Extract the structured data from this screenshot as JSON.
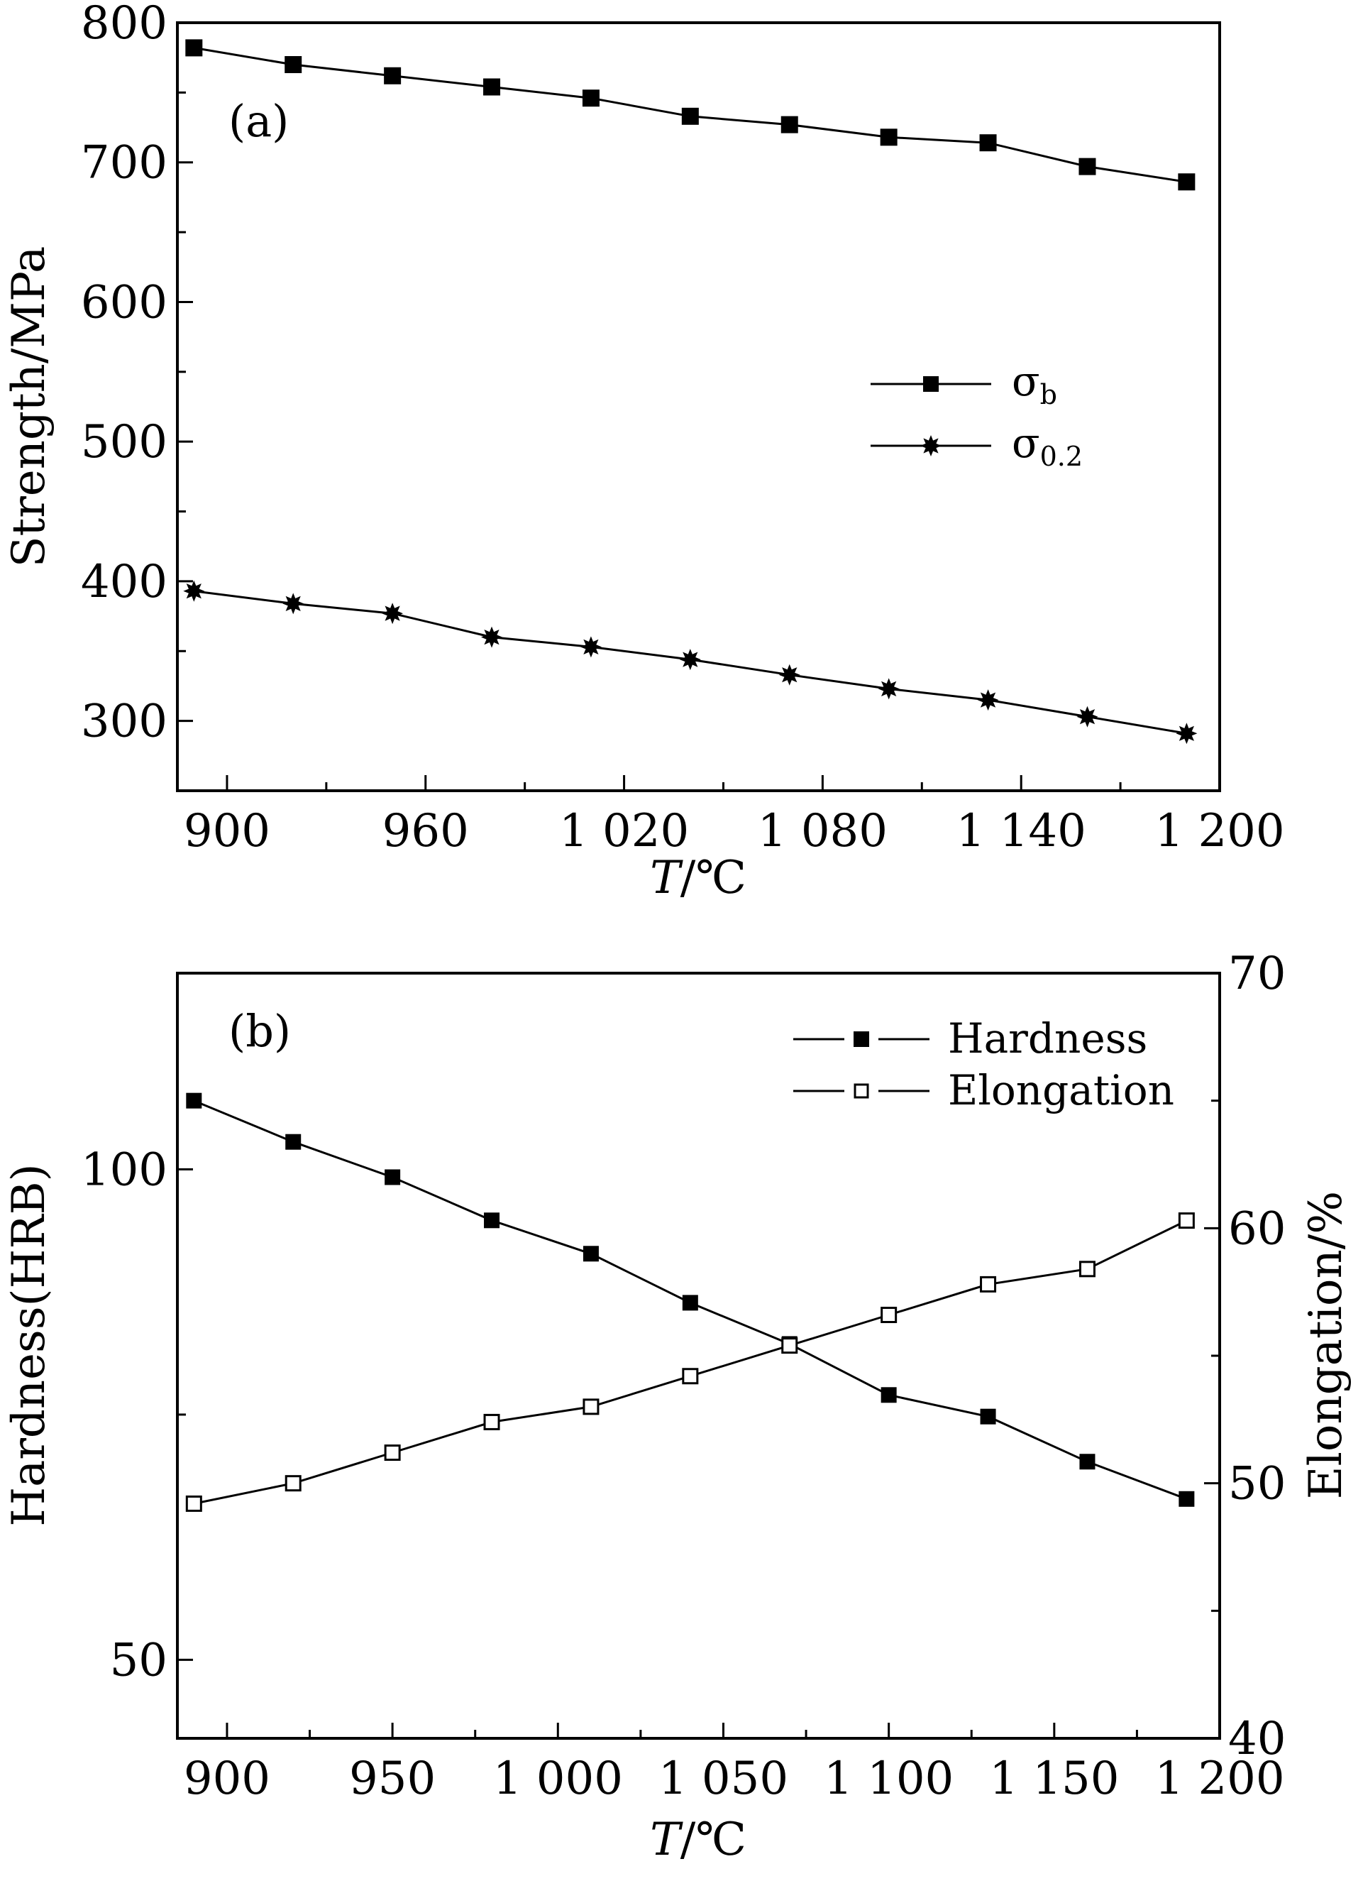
{
  "chart_data": [
    {
      "type": "line",
      "panel_label": "(a)",
      "xlabel": {
        "italic": "T",
        "rest": "/℃"
      },
      "ylabel": "Strength/MPa",
      "xlim": [
        885,
        1200
      ],
      "ylim": [
        250,
        800
      ],
      "x_ticks": [
        900,
        960,
        1020,
        1080,
        1140,
        1200
      ],
      "x_tick_labels": [
        "900",
        "960",
        "1 020",
        "1 080",
        "1 140",
        "1 200"
      ],
      "y_ticks": [
        300,
        400,
        500,
        600,
        700,
        800
      ],
      "y_tick_labels": [
        "300",
        "400",
        "500",
        "600",
        "700",
        "800"
      ],
      "legend_position": "center-right",
      "x": [
        890,
        920,
        950,
        980,
        1010,
        1040,
        1070,
        1100,
        1130,
        1160,
        1190
      ],
      "series": [
        {
          "name_main": "σ",
          "name_sub": "b",
          "marker": "square-filled",
          "values": [
            782,
            770,
            762,
            754,
            746,
            733,
            727,
            718,
            714,
            697,
            686
          ]
        },
        {
          "name_main": "σ",
          "name_sub": "0.2",
          "marker": "star-filled",
          "values": [
            393,
            384,
            377,
            360,
            353,
            344,
            333,
            323,
            315,
            303,
            291
          ]
        }
      ]
    },
    {
      "type": "line",
      "panel_label": "(b)",
      "xlabel": {
        "italic": "T",
        "rest": "/℃"
      },
      "ylabel": "Hardness(HRB)",
      "y2label": "Elongation/%",
      "xlim": [
        885,
        1200
      ],
      "ylim": [
        42,
        120
      ],
      "y2lim": [
        40,
        70
      ],
      "x_ticks": [
        900,
        950,
        1000,
        1050,
        1100,
        1150,
        1200
      ],
      "x_tick_labels": [
        "900",
        "950",
        "1 000",
        "1 050",
        "1 100",
        "1 150",
        "1 200"
      ],
      "y_ticks": [
        50,
        100
      ],
      "y_tick_labels": [
        "50",
        "100"
      ],
      "y2_ticks": [
        40,
        50,
        60,
        70
      ],
      "y2_tick_labels": [
        "40",
        "50",
        "60",
        "70"
      ],
      "legend_position": "top-right",
      "x": [
        890,
        920,
        950,
        980,
        1010,
        1040,
        1070,
        1100,
        1130,
        1160,
        1190
      ],
      "series": [
        {
          "name": "Hardness",
          "marker": "square-filled",
          "axis": "left",
          "values": [
            107,
            102.8,
            99.2,
            94.8,
            91.4,
            86.4,
            82.2,
            77.0,
            74.8,
            70.2,
            66.4
          ]
        },
        {
          "name": "Elongation",
          "marker": "square-open",
          "axis": "right",
          "values": [
            49.2,
            50.0,
            51.2,
            52.4,
            53.0,
            54.2,
            55.4,
            56.6,
            57.8,
            58.4,
            60.3
          ]
        }
      ]
    }
  ]
}
